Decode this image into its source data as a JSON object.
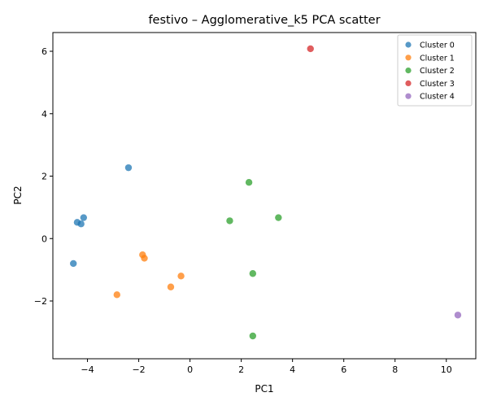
{
  "chart_data": {
    "type": "scatter",
    "title": "festivo – Agglomerative_k5 PCA scatter",
    "xlabel": "PC1",
    "ylabel": "PC2",
    "xlim": [
      -5.35,
      11.15
    ],
    "ylim": [
      -3.85,
      6.6
    ],
    "xticks": [
      -4,
      -2,
      0,
      2,
      4,
      6,
      8,
      10
    ],
    "yticks": [
      -2,
      0,
      2,
      4,
      6
    ],
    "grid": false,
    "legend_position": "top-right",
    "series": [
      {
        "name": "Cluster 0",
        "color": "#1f77b4",
        "points": [
          [
            -2.4,
            2.27
          ],
          [
            -4.15,
            0.67
          ],
          [
            -4.4,
            0.52
          ],
          [
            -4.25,
            0.47
          ],
          [
            -4.55,
            -0.8
          ]
        ]
      },
      {
        "name": "Cluster 1",
        "color": "#ff7f0e",
        "points": [
          [
            -1.85,
            -0.52
          ],
          [
            -1.78,
            -0.63
          ],
          [
            -0.35,
            -1.2
          ],
          [
            -0.75,
            -1.55
          ],
          [
            -2.85,
            -1.8
          ]
        ]
      },
      {
        "name": "Cluster 2",
        "color": "#2ca02c",
        "points": [
          [
            2.3,
            1.8
          ],
          [
            1.55,
            0.57
          ],
          [
            3.45,
            0.67
          ],
          [
            2.45,
            -1.12
          ],
          [
            2.45,
            -3.12
          ]
        ]
      },
      {
        "name": "Cluster 3",
        "color": "#d62728",
        "points": [
          [
            4.7,
            6.08
          ]
        ]
      },
      {
        "name": "Cluster 4",
        "color": "#9467bd",
        "points": [
          [
            10.45,
            -2.45
          ]
        ]
      }
    ]
  }
}
